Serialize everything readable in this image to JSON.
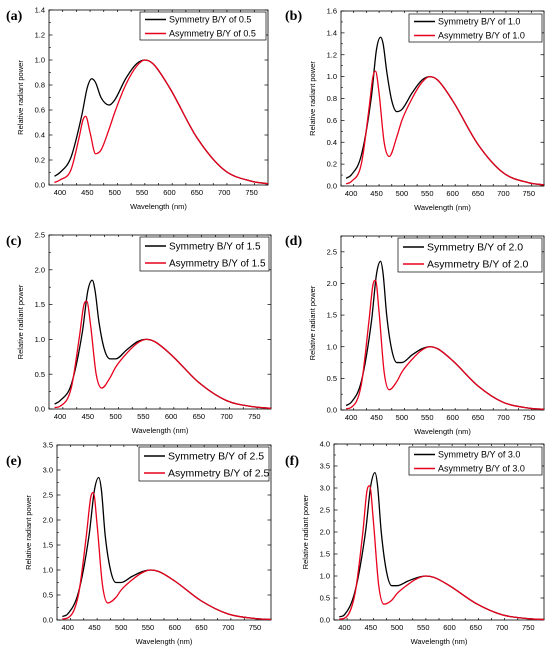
{
  "chart_data": [
    {
      "type": "line",
      "panel": "(a)",
      "xlabel": "Wavelength (nm)",
      "ylabel": "Relative radiant power",
      "xlim": [
        380,
        780
      ],
      "ylim": [
        0,
        1.4
      ],
      "xticks": [
        400,
        450,
        500,
        550,
        600,
        650,
        700,
        750
      ],
      "yticks": [
        0.0,
        0.2,
        0.4,
        0.6,
        0.8,
        1.0,
        1.2,
        1.4
      ],
      "ytick_labels": [
        "0.0",
        "0.2",
        "0.4",
        "0.6",
        "0.8",
        "1.0",
        "1.2",
        "1.4"
      ],
      "legend_position": "top-right",
      "legend_font": 9,
      "series": [
        {
          "name": "Symmetry B/Y of 0.5",
          "color": "#000000",
          "x": [
            390,
            400,
            420,
            440,
            450,
            458,
            465,
            475,
            490,
            500,
            520,
            540,
            555,
            570,
            600,
            650,
            700,
            750,
            780
          ],
          "y": [
            0.07,
            0.1,
            0.22,
            0.56,
            0.78,
            0.85,
            0.82,
            0.7,
            0.64,
            0.68,
            0.85,
            0.97,
            1.0,
            0.97,
            0.78,
            0.38,
            0.12,
            0.03,
            0.01
          ]
        },
        {
          "name": "Asymmetry B/Y of 0.5",
          "color": "#e8001c",
          "x": [
            390,
            400,
            420,
            435,
            442,
            447,
            455,
            465,
            475,
            490,
            500,
            520,
            540,
            555,
            570,
            600,
            650,
            700,
            750,
            780
          ],
          "y": [
            0.02,
            0.04,
            0.12,
            0.38,
            0.52,
            0.55,
            0.42,
            0.25,
            0.28,
            0.45,
            0.58,
            0.8,
            0.95,
            1.0,
            0.97,
            0.78,
            0.38,
            0.12,
            0.03,
            0.01
          ]
        }
      ]
    },
    {
      "type": "line",
      "panel": "(b)",
      "xlabel": "Wavelength (nm)",
      "ylabel": "Relative radiant power",
      "xlim": [
        380,
        780
      ],
      "ylim": [
        0,
        1.6
      ],
      "xticks": [
        400,
        450,
        500,
        550,
        600,
        650,
        700,
        750
      ],
      "yticks": [
        0.0,
        0.2,
        0.4,
        0.6,
        0.8,
        1.0,
        1.2,
        1.4,
        1.6
      ],
      "ytick_labels": [
        "0.0",
        "0.2",
        "0.4",
        "0.6",
        "0.8",
        "1.0",
        "1.2",
        "1.4",
        "1.6"
      ],
      "legend_position": "top-right",
      "legend_font": 9,
      "series": [
        {
          "name": "Symmetry B/Y of 1.0",
          "color": "#000000",
          "x": [
            390,
            400,
            420,
            440,
            450,
            458,
            463,
            470,
            480,
            490,
            500,
            520,
            540,
            555,
            570,
            600,
            650,
            700,
            750,
            780
          ],
          "y": [
            0.07,
            0.1,
            0.28,
            0.82,
            1.25,
            1.36,
            1.3,
            1.05,
            0.78,
            0.68,
            0.7,
            0.85,
            0.97,
            1.0,
            0.97,
            0.78,
            0.38,
            0.12,
            0.03,
            0.01
          ]
        },
        {
          "name": "Asymmetry B/Y of 1.0",
          "color": "#e8001c",
          "x": [
            390,
            400,
            420,
            435,
            443,
            448,
            455,
            465,
            475,
            490,
            500,
            520,
            540,
            555,
            570,
            600,
            650,
            700,
            750,
            780
          ],
          "y": [
            0.02,
            0.04,
            0.2,
            0.7,
            1.0,
            1.05,
            0.85,
            0.4,
            0.27,
            0.45,
            0.6,
            0.8,
            0.95,
            1.0,
            0.97,
            0.78,
            0.38,
            0.12,
            0.03,
            0.01
          ]
        }
      ]
    },
    {
      "type": "line",
      "panel": "(c)",
      "xlabel": "Wavelength (nm)",
      "ylabel": "Relative radiant power",
      "xlim": [
        380,
        780
      ],
      "ylim": [
        0,
        2.5
      ],
      "xticks": [
        400,
        450,
        500,
        550,
        600,
        650,
        700,
        750
      ],
      "yticks": [
        0.0,
        0.5,
        1.0,
        1.5,
        2.0,
        2.5
      ],
      "ytick_labels": [
        "0.0",
        "0.5",
        "1.0",
        "1.5",
        "2.0",
        "2.5"
      ],
      "legend_position": "top-right",
      "legend_font": 10,
      "series": [
        {
          "name": "Symmetry B/Y of 1.5",
          "color": "#000000",
          "x": [
            390,
            400,
            420,
            440,
            450,
            458,
            463,
            470,
            480,
            490,
            500,
            520,
            540,
            555,
            570,
            600,
            650,
            700,
            750,
            780
          ],
          "y": [
            0.07,
            0.12,
            0.35,
            1.1,
            1.7,
            1.85,
            1.7,
            1.25,
            0.85,
            0.72,
            0.72,
            0.85,
            0.97,
            1.0,
            0.97,
            0.78,
            0.38,
            0.12,
            0.03,
            0.01
          ]
        },
        {
          "name": "Asymmetry B/Y of 1.5",
          "color": "#e8001c",
          "x": [
            390,
            400,
            420,
            435,
            443,
            448,
            455,
            465,
            475,
            490,
            500,
            520,
            540,
            555,
            570,
            600,
            650,
            700,
            750,
            780
          ],
          "y": [
            0.02,
            0.04,
            0.3,
            1.05,
            1.5,
            1.55,
            1.2,
            0.5,
            0.3,
            0.45,
            0.6,
            0.8,
            0.95,
            1.0,
            0.97,
            0.78,
            0.38,
            0.12,
            0.03,
            0.01
          ]
        }
      ]
    },
    {
      "type": "line",
      "panel": "(d)",
      "xlabel": "Wavelength (nm)",
      "ylabel": "Relative radiant power",
      "xlim": [
        380,
        780
      ],
      "ylim": [
        0,
        2.75
      ],
      "xticks": [
        400,
        450,
        500,
        550,
        600,
        650,
        700,
        750
      ],
      "yticks": [
        0.0,
        0.5,
        1.0,
        1.5,
        2.0,
        2.5
      ],
      "ytick_labels": [
        "0.0",
        "0.5",
        "1.0",
        "1.5",
        "2.0",
        "2.5"
      ],
      "legend_position": "top-right",
      "legend_font": 10.5,
      "series": [
        {
          "name": "Symmetry B/Y of 2.0",
          "color": "#000000",
          "x": [
            390,
            400,
            420,
            440,
            450,
            458,
            463,
            470,
            480,
            490,
            500,
            520,
            540,
            555,
            570,
            600,
            650,
            700,
            750,
            780
          ],
          "y": [
            0.07,
            0.12,
            0.45,
            1.4,
            2.15,
            2.35,
            2.15,
            1.5,
            0.95,
            0.75,
            0.75,
            0.87,
            0.97,
            1.0,
            0.97,
            0.78,
            0.38,
            0.12,
            0.03,
            0.01
          ]
        },
        {
          "name": "Asymmetry B/Y of 2.0",
          "color": "#e8001c",
          "x": [
            390,
            400,
            420,
            435,
            443,
            448,
            455,
            465,
            475,
            490,
            500,
            520,
            540,
            555,
            570,
            600,
            650,
            700,
            750,
            780
          ],
          "y": [
            0.02,
            0.04,
            0.4,
            1.4,
            1.98,
            2.05,
            1.55,
            0.6,
            0.32,
            0.45,
            0.6,
            0.8,
            0.95,
            1.0,
            0.97,
            0.78,
            0.38,
            0.12,
            0.03,
            0.01
          ]
        }
      ]
    },
    {
      "type": "line",
      "panel": "(e)",
      "xlabel": "Wavelength (nm)",
      "ylabel": "Relative radiant power",
      "xlim": [
        380,
        780
      ],
      "ylim": [
        0,
        3.5
      ],
      "xticks": [
        400,
        450,
        500,
        550,
        600,
        650,
        700,
        750
      ],
      "yticks": [
        0.0,
        0.5,
        1.0,
        1.5,
        2.0,
        2.5,
        3.0,
        3.5
      ],
      "ytick_labels": [
        "0.0",
        "0.5",
        "1.0",
        "1.5",
        "2.0",
        "2.5",
        "3.0",
        "3.5"
      ],
      "legend_position": "top-right",
      "legend_font": 10.5,
      "series": [
        {
          "name": "Symmetry B/Y of 2.5",
          "color": "#000000",
          "x": [
            390,
            400,
            420,
            440,
            450,
            458,
            463,
            470,
            480,
            490,
            500,
            520,
            540,
            555,
            570,
            600,
            650,
            700,
            750,
            780
          ],
          "y": [
            0.07,
            0.12,
            0.55,
            1.7,
            2.6,
            2.85,
            2.6,
            1.7,
            1.0,
            0.75,
            0.75,
            0.87,
            0.97,
            1.0,
            0.97,
            0.78,
            0.38,
            0.12,
            0.03,
            0.01
          ]
        },
        {
          "name": "Asymmetry B/Y of 2.5",
          "color": "#e8001c",
          "x": [
            390,
            400,
            420,
            435,
            443,
            448,
            455,
            465,
            475,
            490,
            500,
            520,
            540,
            555,
            570,
            600,
            650,
            700,
            750,
            780
          ],
          "y": [
            0.02,
            0.04,
            0.5,
            1.7,
            2.45,
            2.55,
            1.9,
            0.7,
            0.34,
            0.45,
            0.6,
            0.8,
            0.95,
            1.0,
            0.97,
            0.78,
            0.38,
            0.12,
            0.03,
            0.01
          ]
        }
      ]
    },
    {
      "type": "line",
      "panel": "(f)",
      "xlabel": "Wavelength (nm)",
      "ylabel": "Relative radiant power",
      "xlim": [
        380,
        780
      ],
      "ylim": [
        0,
        4.0
      ],
      "xticks": [
        400,
        450,
        500,
        550,
        600,
        650,
        700,
        750
      ],
      "yticks": [
        0.0,
        0.5,
        1.0,
        1.5,
        2.0,
        2.5,
        3.0,
        3.5,
        4.0
      ],
      "ytick_labels": [
        "0.0",
        "0.5",
        "1.0",
        "1.5",
        "2.0",
        "2.5",
        "3.0",
        "3.5",
        "4.0"
      ],
      "legend_position": "top-right",
      "legend_font": 9,
      "series": [
        {
          "name": "Symmetry B/Y of 3.0",
          "color": "#000000",
          "x": [
            390,
            400,
            420,
            440,
            450,
            458,
            463,
            470,
            480,
            490,
            500,
            520,
            540,
            555,
            570,
            600,
            650,
            700,
            750,
            780
          ],
          "y": [
            0.07,
            0.12,
            0.65,
            2.0,
            3.05,
            3.35,
            3.05,
            2.0,
            1.1,
            0.78,
            0.78,
            0.88,
            0.97,
            1.0,
            0.97,
            0.78,
            0.38,
            0.12,
            0.03,
            0.01
          ]
        },
        {
          "name": "Asymmetry B/Y of 3.0",
          "color": "#e8001c",
          "x": [
            390,
            400,
            420,
            435,
            443,
            448,
            455,
            465,
            475,
            490,
            500,
            520,
            540,
            555,
            570,
            600,
            650,
            700,
            750,
            780
          ],
          "y": [
            0.02,
            0.04,
            0.6,
            2.0,
            2.95,
            3.05,
            2.25,
            0.8,
            0.36,
            0.45,
            0.6,
            0.8,
            0.95,
            1.0,
            0.97,
            0.78,
            0.38,
            0.12,
            0.03,
            0.01
          ]
        }
      ]
    }
  ]
}
